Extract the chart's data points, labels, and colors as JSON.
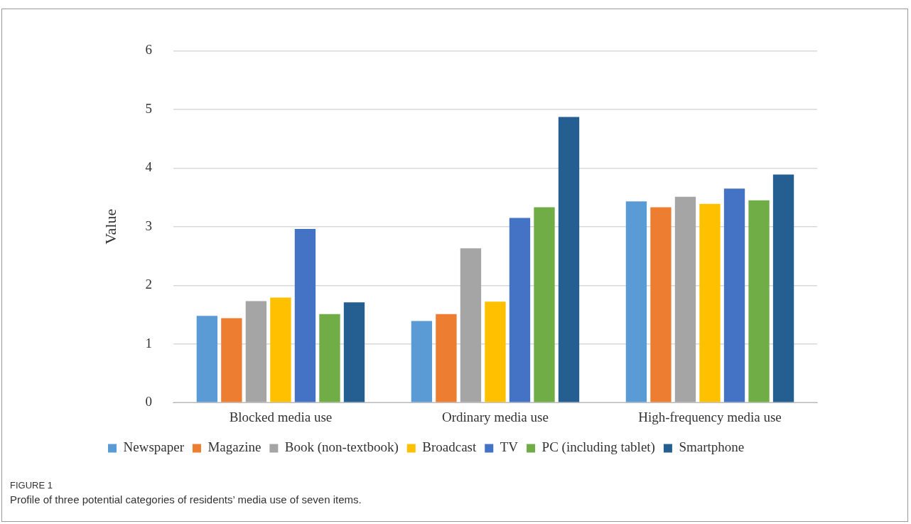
{
  "chart_data": {
    "type": "bar",
    "ylabel": "Value",
    "categories": [
      "Blocked media use",
      "Ordinary media use",
      "High-frequency media use"
    ],
    "series": [
      {
        "name": "Newspaper",
        "color": "#5b9bd5",
        "values": [
          1.48,
          1.39,
          3.43
        ]
      },
      {
        "name": "Magazine",
        "color": "#ed7d31",
        "values": [
          1.44,
          1.51,
          3.33
        ]
      },
      {
        "name": "Book (non-textbook)",
        "color": "#a5a5a5",
        "values": [
          1.73,
          2.63,
          3.51
        ]
      },
      {
        "name": "Broadcast",
        "color": "#ffc000",
        "values": [
          1.79,
          1.72,
          3.39
        ]
      },
      {
        "name": "TV",
        "color": "#4472c4",
        "values": [
          2.96,
          3.15,
          3.65
        ]
      },
      {
        "name": "PC (including tablet)",
        "color": "#70ad47",
        "values": [
          1.51,
          3.33,
          3.45
        ]
      },
      {
        "name": "Smartphone",
        "color": "#255e91",
        "values": [
          1.71,
          4.87,
          3.89
        ]
      }
    ],
    "ylim": [
      0,
      6
    ],
    "yticks": [
      0,
      1,
      2,
      3,
      4,
      5,
      6
    ],
    "grid": "y",
    "legend": "bottom",
    "annotations": [
      "FIGURE 1",
      "Profile of three potential categories of residents’ media use of seven items."
    ]
  }
}
